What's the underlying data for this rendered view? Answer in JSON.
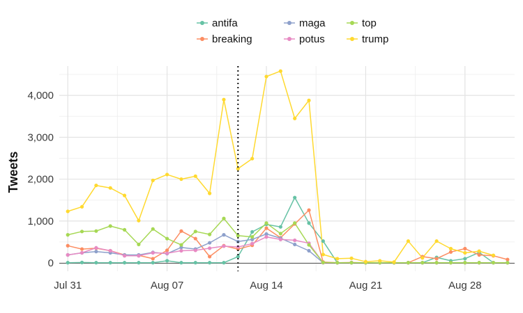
{
  "chart_data": {
    "type": "line",
    "ylabel": "Tweets",
    "xlabel": "",
    "title": "",
    "legend_position": "top",
    "grid": true,
    "x_ticks": [
      "Jul 31",
      "Aug 07",
      "Aug 14",
      "Aug 21",
      "Aug 28"
    ],
    "x_tick_days": [
      0,
      7,
      14,
      21,
      28
    ],
    "y_ticks": [
      0,
      1000,
      2000,
      3000,
      4000
    ],
    "y_tick_labels": [
      "0",
      "1,000",
      "2,000",
      "3,000",
      "4,000"
    ],
    "ylim": [
      -200,
      4700
    ],
    "xlim_days": [
      -0.6,
      31.5
    ],
    "vline_day": 12,
    "x_days": [
      0,
      1,
      2,
      3,
      4,
      5,
      6,
      7,
      8,
      9,
      10,
      11,
      12,
      13,
      14,
      15,
      16,
      17,
      18,
      19,
      20,
      21,
      22,
      23,
      24,
      25,
      26,
      27,
      28,
      29,
      30,
      31
    ],
    "series": [
      {
        "name": "antifa",
        "color": "#66c2a5",
        "values": [
          5,
          10,
          5,
          5,
          5,
          5,
          5,
          50,
          5,
          5,
          5,
          5,
          150,
          740,
          920,
          860,
          1560,
          950,
          520,
          5,
          5,
          5,
          5,
          5,
          5,
          5,
          130,
          50,
          100,
          250,
          5,
          5
        ]
      },
      {
        "name": "breaking",
        "color": "#fc8d62",
        "values": [
          410,
          330,
          350,
          290,
          190,
          180,
          100,
          300,
          760,
          580,
          150,
          410,
          330,
          420,
          830,
          600,
          930,
          1260,
          20,
          5,
          10,
          5,
          5,
          5,
          5,
          150,
          100,
          260,
          340,
          190,
          170,
          80
        ]
      },
      {
        "name": "maga",
        "color": "#8da0cb",
        "values": [
          190,
          240,
          270,
          240,
          190,
          190,
          250,
          220,
          370,
          330,
          480,
          670,
          510,
          560,
          690,
          590,
          440,
          290,
          5,
          5,
          5,
          5,
          5,
          5,
          5,
          5,
          5,
          5,
          5,
          5,
          5,
          5
        ]
      },
      {
        "name": "potus",
        "color": "#e78ac3",
        "values": [
          190,
          240,
          360,
          290,
          170,
          170,
          240,
          230,
          290,
          300,
          350,
          400,
          380,
          460,
          620,
          560,
          540,
          470,
          5,
          5,
          5,
          5,
          5,
          5,
          5,
          5,
          5,
          5,
          5,
          5,
          5,
          5
        ]
      },
      {
        "name": "top",
        "color": "#a6d854",
        "values": [
          670,
          750,
          760,
          880,
          790,
          440,
          810,
          580,
          430,
          750,
          680,
          1060,
          650,
          620,
          950,
          700,
          950,
          430,
          10,
          5,
          5,
          5,
          5,
          5,
          5,
          5,
          5,
          5,
          5,
          5,
          5,
          5
        ]
      },
      {
        "name": "trump",
        "color": "#ffd92f",
        "values": [
          1230,
          1340,
          1850,
          1790,
          1610,
          1010,
          1970,
          2110,
          2000,
          2070,
          1660,
          3900,
          2250,
          2490,
          4450,
          4580,
          3450,
          3880,
          200,
          100,
          110,
          30,
          50,
          20,
          520,
          120,
          520,
          340,
          240,
          280,
          180,
          null
        ]
      }
    ]
  }
}
